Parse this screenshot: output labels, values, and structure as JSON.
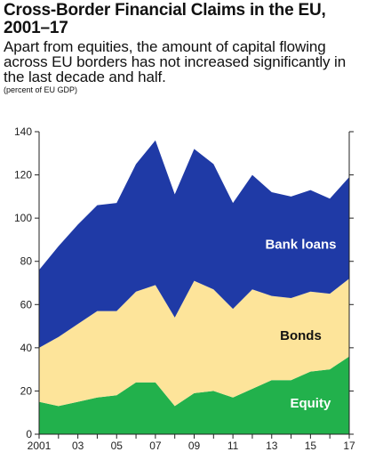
{
  "header": {
    "title": "Cross-Border Financial Claims in the EU, 2001–17",
    "subtitle": "Apart from equities, the amount of capital flowing across EU borders has not increased significantly in the last decade and half.",
    "note": "(percent of EU GDP)"
  },
  "chart_data": {
    "type": "area",
    "stacked": true,
    "title": "Cross-Border Financial Claims in the EU, 2001–17",
    "subtitle": "Apart from equities, the amount of capital flowing across EU borders has not increased significantly in the last decade and half.",
    "ylabel": "",
    "xlabel": "",
    "ylim": [
      0,
      140
    ],
    "yticks": [
      0,
      20,
      40,
      60,
      80,
      100,
      120,
      140
    ],
    "x": [
      2001,
      2002,
      2003,
      2004,
      2005,
      2006,
      2007,
      2008,
      2009,
      2010,
      2011,
      2012,
      2013,
      2014,
      2015,
      2016,
      2017
    ],
    "xticks": [
      {
        "x": 2001,
        "label": "2001"
      },
      {
        "x": 2003,
        "label": "03"
      },
      {
        "x": 2005,
        "label": "05"
      },
      {
        "x": 2007,
        "label": "07"
      },
      {
        "x": 2009,
        "label": "09"
      },
      {
        "x": 2011,
        "label": "11"
      },
      {
        "x": 2013,
        "label": "13"
      },
      {
        "x": 2015,
        "label": "15"
      },
      {
        "x": 2017,
        "label": "17"
      }
    ],
    "series": [
      {
        "name": "Equity",
        "color": "#22b14c",
        "label_color": "#ffffff",
        "values": [
          15,
          13,
          15,
          17,
          18,
          24,
          24,
          13,
          19,
          20,
          17,
          21,
          25,
          25,
          29,
          30,
          36
        ]
      },
      {
        "name": "Bonds",
        "color": "#fde49a",
        "label_color": "#111111",
        "values": [
          25,
          32,
          36,
          40,
          39,
          42,
          45,
          41,
          52,
          47,
          41,
          46,
          39,
          38,
          37,
          35,
          36
        ]
      },
      {
        "name": "Bank loans",
        "color": "#1f3aa6",
        "label_color": "#ffffff",
        "values": [
          36,
          42,
          46,
          49,
          50,
          59,
          67,
          57,
          61,
          58,
          49,
          53,
          48,
          47,
          47,
          44,
          47
        ]
      }
    ],
    "grid": false
  }
}
